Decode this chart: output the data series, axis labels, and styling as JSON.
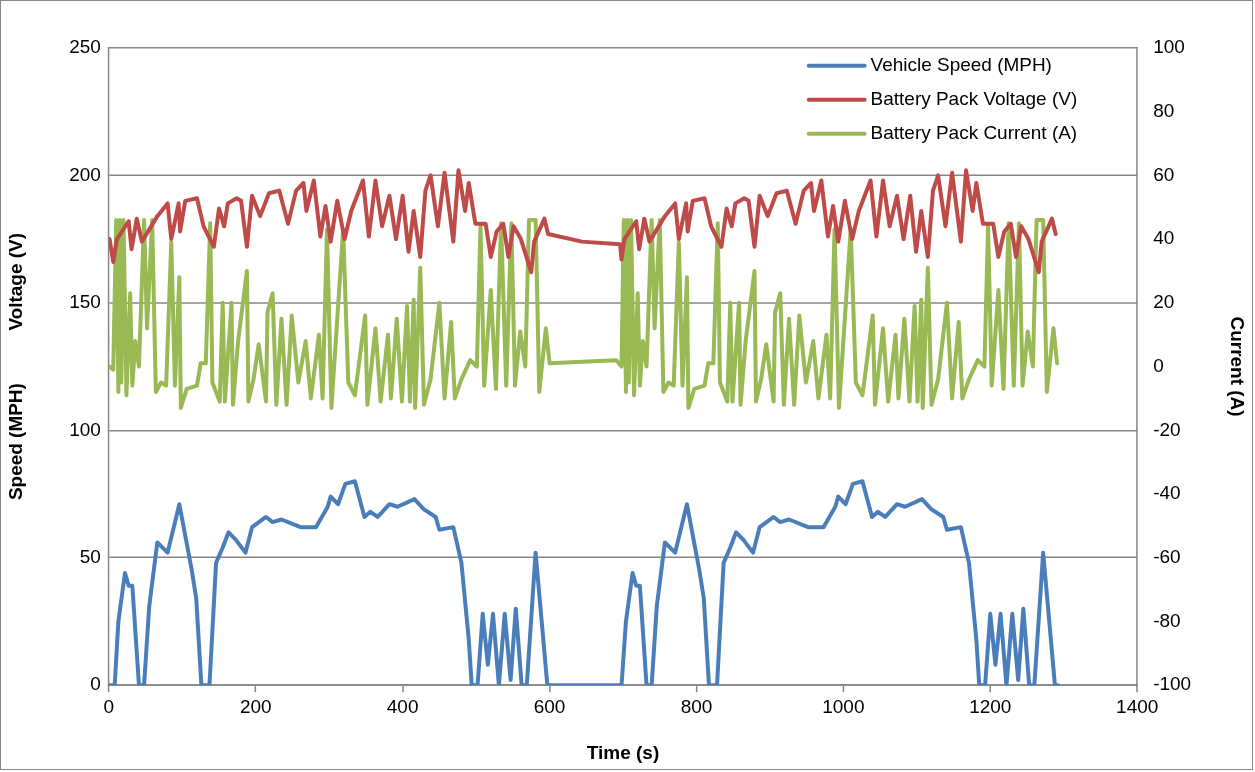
{
  "chart_data": {
    "type": "line",
    "xlabel": "Time (s)",
    "ylabel": "Speed (MPH)          Voltage (V)",
    "y2label": "Current (A)",
    "xlim": [
      0,
      1400
    ],
    "xticks": [
      0,
      200,
      400,
      600,
      800,
      1000,
      1200,
      1400
    ],
    "ylim": [
      0,
      250
    ],
    "yticks": [
      0,
      50,
      100,
      150,
      200,
      250
    ],
    "y2lim": [
      -100,
      100
    ],
    "y2ticks": [
      -100,
      -80,
      -60,
      -40,
      -20,
      0,
      20,
      40,
      60,
      80,
      100
    ],
    "grid": "y",
    "legend": "top right",
    "marker": "none",
    "line_style": "solid",
    "series": [
      {
        "name": "Vehicle Speed (MPH)",
        "color": "#4a7ebb",
        "x": [
          1,
          8,
          13,
          22,
          27,
          32,
          41,
          48,
          55,
          66,
          80,
          96,
          113,
          119,
          126,
          137,
          146,
          155,
          163,
          173,
          186,
          195,
          214,
          223,
          235,
          261,
          282,
          298,
          302,
          312,
          322,
          335,
          348,
          356,
          366,
          382,
          393,
          416,
          429,
          445,
          450,
          469,
          480,
          490,
          494,
          502,
          509,
          516,
          523,
          531,
          539,
          547,
          554,
          562,
          569,
          581,
          597,
          698,
          704,
          713,
          718,
          723,
          732,
          739,
          746,
          757,
          771,
          787,
          804,
          810,
          817,
          828,
          837,
          846,
          854,
          864,
          877,
          886,
          905,
          914,
          926,
          952,
          973,
          989,
          993,
          1003,
          1013,
          1026,
          1039,
          1047,
          1057,
          1073,
          1084,
          1107,
          1120,
          1136,
          1141,
          1160,
          1171,
          1181,
          1185,
          1193,
          1200,
          1207,
          1214,
          1222,
          1230,
          1238,
          1245,
          1253,
          1260,
          1272,
          1288,
          1292
        ],
        "values": [
          0,
          0,
          25,
          44,
          39,
          39,
          0,
          0,
          31,
          56,
          52,
          71,
          45,
          34,
          0,
          0,
          48,
          54,
          60,
          57,
          52,
          62,
          66,
          64,
          65,
          62,
          62,
          70,
          74,
          71,
          79,
          80,
          66,
          68,
          66,
          71,
          70,
          73,
          69,
          66,
          61,
          62,
          48,
          18,
          0,
          0,
          28,
          8,
          28,
          0,
          28,
          2,
          30,
          0,
          0,
          52,
          0,
          0,
          25,
          44,
          39,
          39,
          0,
          0,
          31,
          56,
          52,
          71,
          45,
          34,
          0,
          0,
          48,
          54,
          60,
          57,
          52,
          62,
          66,
          64,
          65,
          62,
          62,
          70,
          74,
          71,
          79,
          80,
          66,
          68,
          66,
          71,
          70,
          73,
          69,
          66,
          61,
          62,
          48,
          18,
          0,
          0,
          28,
          8,
          28,
          0,
          28,
          2,
          30,
          0,
          0,
          52,
          0,
          0
        ]
      },
      {
        "name": "Battery Pack Voltage (V)",
        "color": "#be4b48",
        "x": [
          1,
          6,
          11,
          27,
          31,
          38,
          45,
          66,
          80,
          85,
          95,
          97,
          104,
          120,
          129,
          143,
          150,
          157,
          162,
          174,
          180,
          188,
          195,
          206,
          218,
          232,
          244,
          255,
          265,
          269,
          279,
          288,
          295,
          302,
          311,
          321,
          330,
          346,
          354,
          363,
          372,
          382,
          391,
          400,
          408,
          415,
          424,
          431,
          438,
          448,
          457,
          469,
          476,
          485,
          490,
          499,
          513,
          520,
          528,
          537,
          544,
          551,
          561,
          575,
          579,
          593,
          598,
          644,
          696,
          698,
          702,
          718,
          722,
          729,
          736,
          757,
          771,
          776,
          786,
          788,
          795,
          811,
          820,
          834,
          841,
          848,
          853,
          865,
          871,
          879,
          886,
          897,
          909,
          923,
          935,
          946,
          956,
          960,
          970,
          979,
          986,
          993,
          1002,
          1012,
          1021,
          1037,
          1045,
          1054,
          1063,
          1073,
          1082,
          1091,
          1099,
          1106,
          1115,
          1122,
          1129,
          1139,
          1148,
          1160,
          1167,
          1176,
          1181,
          1190,
          1204,
          1211,
          1219,
          1228,
          1235,
          1242,
          1252,
          1266,
          1270,
          1284,
          1289
        ],
        "values": [
          175,
          166,
          175,
          182,
          171,
          183,
          174,
          184,
          189,
          175,
          189,
          178,
          190,
          191,
          180,
          172,
          187,
          180,
          189,
          191,
          190,
          172,
          192,
          184,
          193,
          194,
          181,
          194,
          197,
          186,
          198,
          176,
          188,
          174,
          190,
          175,
          186,
          198,
          176,
          198,
          180,
          192,
          175,
          192,
          170,
          186,
          168,
          194,
          200,
          180,
          201,
          174,
          202,
          186,
          197,
          181,
          181,
          168,
          178,
          181,
          168,
          180,
          175,
          162,
          174,
          183,
          177,
          174,
          173,
          167,
          175,
          182,
          171,
          183,
          174,
          184,
          189,
          175,
          189,
          178,
          190,
          191,
          180,
          172,
          187,
          180,
          189,
          191,
          190,
          172,
          192,
          184,
          193,
          194,
          181,
          194,
          197,
          186,
          198,
          176,
          188,
          174,
          190,
          175,
          186,
          198,
          176,
          198,
          180,
          192,
          175,
          192,
          170,
          186,
          168,
          194,
          200,
          180,
          201,
          174,
          202,
          186,
          197,
          181,
          181,
          168,
          178,
          181,
          168,
          180,
          175,
          162,
          174,
          183,
          177
        ]
      },
      {
        "name": "Battery Pack Current (A)",
        "color": "#98b954",
        "axis": "y2",
        "x": [
          1,
          6,
          10,
          13,
          15,
          17,
          20,
          24,
          29,
          32,
          36,
          41,
          48,
          52,
          59,
          64,
          71,
          78,
          85,
          90,
          96,
          98,
          106,
          120,
          125,
          132,
          138,
          141,
          151,
          155,
          158,
          167,
          169,
          176,
          188,
          190,
          197,
          204,
          214,
          216,
          223,
          228,
          235,
          242,
          249,
          258,
          268,
          275,
          286,
          291,
          297,
          303,
          319,
          326,
          335,
          349,
          352,
          363,
          370,
          380,
          384,
          392,
          399,
          406,
          410,
          415,
          417,
          424,
          429,
          438,
          450,
          457,
          466,
          471,
          480,
          492,
          501,
          506,
          511,
          520,
          527,
          534,
          541,
          548,
          553,
          560,
          567,
          572,
          581,
          586,
          595,
          600,
          691,
          698,
          701,
          704,
          706,
          708,
          711,
          715,
          720,
          723,
          727,
          732,
          739,
          743,
          750,
          755,
          762,
          769,
          776,
          781,
          787,
          789,
          797,
          811,
          816,
          823,
          829,
          832,
          842,
          846,
          849,
          858,
          860,
          867,
          879,
          881,
          888,
          895,
          905,
          907,
          914,
          919,
          926,
          933,
          940,
          949,
          959,
          966,
          977,
          982,
          988,
          994,
          1010,
          1017,
          1026,
          1040,
          1043,
          1054,
          1061,
          1071,
          1075,
          1083,
          1090,
          1097,
          1101,
          1106,
          1108,
          1115,
          1120,
          1129,
          1141,
          1148,
          1157,
          1162,
          1171,
          1183,
          1192,
          1197,
          1202,
          1211,
          1218,
          1225,
          1232,
          1239,
          1244,
          1251,
          1258,
          1263,
          1272,
          1277,
          1286,
          1291
        ],
        "values": [
          0,
          -1,
          46,
          -8,
          46,
          -5,
          46,
          -9,
          23,
          -6,
          8,
          0,
          46,
          12,
          46,
          -8,
          -5,
          -6,
          39,
          -6,
          28,
          -13,
          -7,
          -6,
          1,
          1,
          45,
          -5,
          -11,
          20,
          -11,
          20,
          -12,
          8,
          30,
          -11,
          -4,
          7,
          -11,
          17,
          23,
          -12,
          15,
          -12,
          16,
          -5,
          8,
          -10,
          10,
          -10,
          43,
          -13,
          43,
          -5,
          -9,
          16,
          -12,
          12,
          -11,
          10,
          -10,
          15,
          -11,
          19,
          -11,
          21,
          -13,
          31,
          -12,
          -4,
          20,
          -10,
          14,
          -10,
          -4,
          2,
          0,
          44,
          -6,
          24,
          -7,
          45,
          -6,
          45,
          -6,
          11,
          0,
          46,
          46,
          -8,
          12,
          1,
          2,
          0,
          46,
          -8,
          46,
          -5,
          46,
          -9,
          23,
          -6,
          8,
          0,
          46,
          12,
          46,
          -8,
          -5,
          -6,
          39,
          -6,
          28,
          -13,
          -7,
          -6,
          1,
          1,
          45,
          -5,
          -11,
          20,
          -11,
          20,
          -12,
          8,
          30,
          -11,
          -4,
          7,
          -11,
          17,
          23,
          -12,
          15,
          -12,
          16,
          -5,
          8,
          -10,
          10,
          -10,
          43,
          -13,
          43,
          -5,
          -9,
          16,
          -12,
          12,
          -11,
          10,
          -10,
          15,
          -11,
          19,
          -11,
          21,
          -13,
          31,
          -12,
          -4,
          20,
          -10,
          14,
          -10,
          -4,
          2,
          0,
          44,
          -6,
          24,
          -7,
          45,
          -6,
          45,
          -6,
          11,
          0,
          46,
          46,
          -8,
          12,
          1
        ]
      }
    ]
  }
}
